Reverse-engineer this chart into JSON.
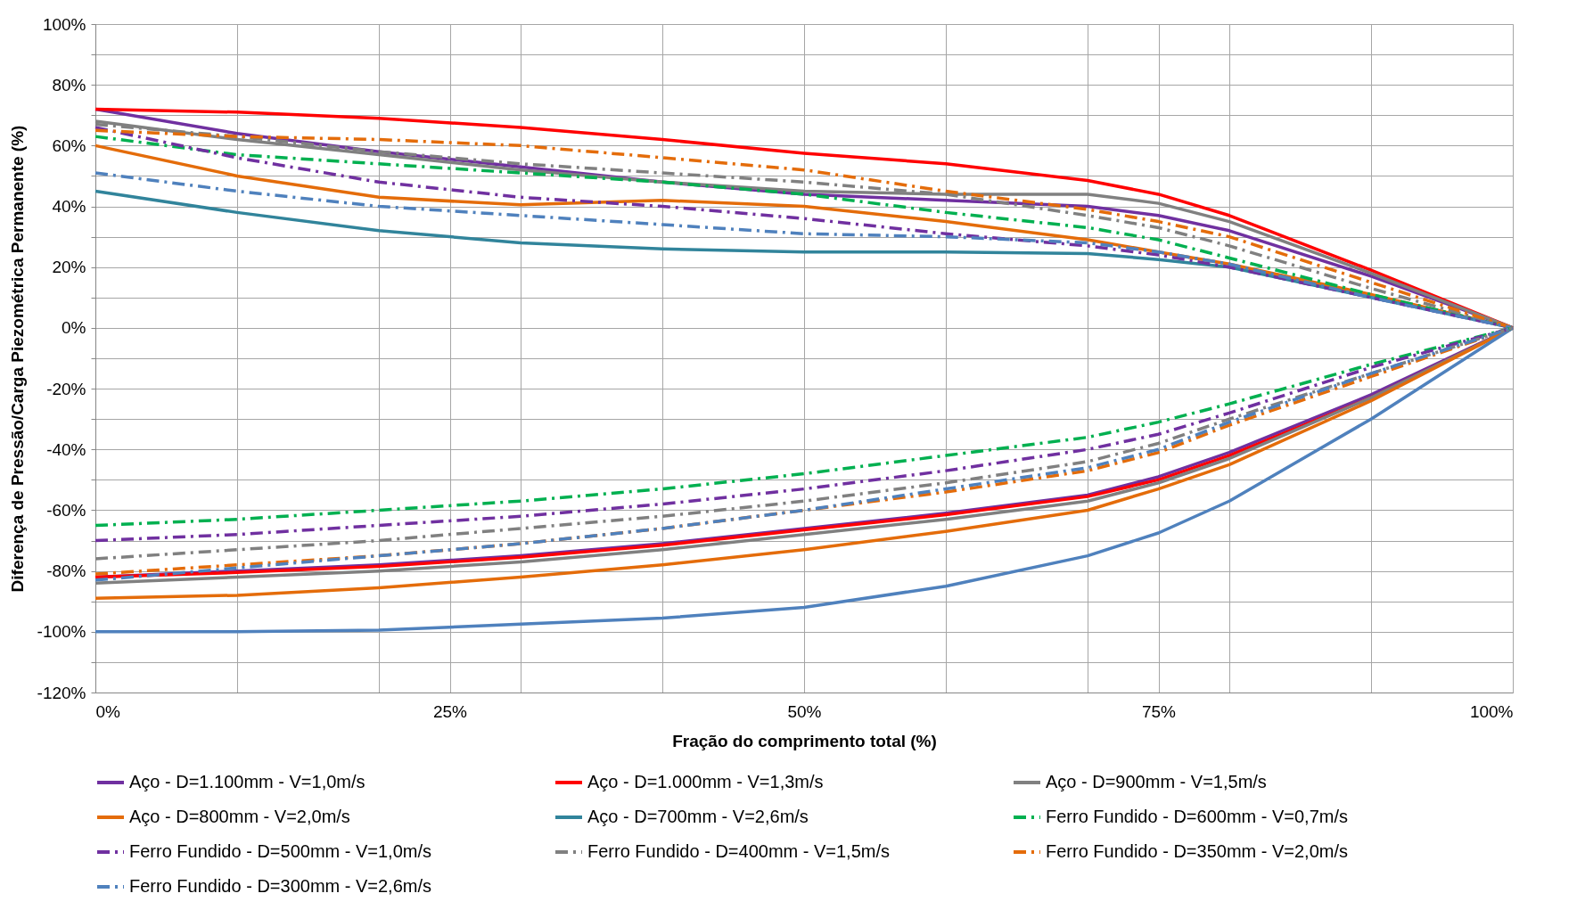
{
  "chart_data": {
    "type": "line",
    "xlabel": "Fração do comprimento total (%)",
    "ylabel": "Diferença de Pressão/Carga Piezométrica Permanente (%)",
    "x": [
      0,
      10,
      20,
      30,
      40,
      50,
      60,
      70,
      75,
      80,
      90,
      100
    ],
    "xlim": [
      0,
      100
    ],
    "ylim": [
      -120,
      100
    ],
    "xticks": [
      {
        "value": 0,
        "label": "0%"
      },
      {
        "value": 10,
        "label": null
      },
      {
        "value": 20,
        "label": null
      },
      {
        "value": 25,
        "label": "25%"
      },
      {
        "value": 30,
        "label": null
      },
      {
        "value": 40,
        "label": null
      },
      {
        "value": 50,
        "label": "50%"
      },
      {
        "value": 60,
        "label": null
      },
      {
        "value": 70,
        "label": null
      },
      {
        "value": 75,
        "label": "75%"
      },
      {
        "value": 80,
        "label": null
      },
      {
        "value": 90,
        "label": null
      },
      {
        "value": 100,
        "label": "100%"
      }
    ],
    "yticks": [
      {
        "value": -120,
        "label": "-120%"
      },
      {
        "value": -110,
        "label": null
      },
      {
        "value": -100,
        "label": "-100%"
      },
      {
        "value": -90,
        "label": null
      },
      {
        "value": -80,
        "label": "-80%"
      },
      {
        "value": -70,
        "label": null
      },
      {
        "value": -60,
        "label": "-60%"
      },
      {
        "value": -50,
        "label": null
      },
      {
        "value": -40,
        "label": "-40%"
      },
      {
        "value": -30,
        "label": null
      },
      {
        "value": -20,
        "label": "-20%"
      },
      {
        "value": -10,
        "label": null
      },
      {
        "value": 0,
        "label": "0%"
      },
      {
        "value": 10,
        "label": null
      },
      {
        "value": 20,
        "label": "20%"
      },
      {
        "value": 30,
        "label": null
      },
      {
        "value": 40,
        "label": "40%"
      },
      {
        "value": 50,
        "label": null
      },
      {
        "value": 60,
        "label": "60%"
      },
      {
        "value": 70,
        "label": null
      },
      {
        "value": 80,
        "label": "80%"
      },
      {
        "value": 90,
        "label": null
      },
      {
        "value": 100,
        "label": "100%"
      }
    ],
    "grid": true,
    "legend": "bottom",
    "series": [
      {
        "name": "Aço - D=1.100mm - V=1,0m/s",
        "color": "#7030a0",
        "line_style": "solid",
        "values": [
          72,
          64,
          58,
          53,
          48,
          44,
          42,
          40,
          37,
          32,
          17,
          0
        ]
      },
      {
        "name": "Aço - D=1.000mm - V=1,3m/s",
        "color": "#ff0000",
        "line_style": "solid",
        "values": [
          72,
          71,
          69,
          66,
          62,
          57.5,
          54,
          48.5,
          44,
          37,
          19,
          0
        ]
      },
      {
        "name": "Aço - D=900mm - V=1,5m/s",
        "color": "#808080",
        "line_style": "solid",
        "values": [
          68,
          62,
          57,
          52,
          48,
          45,
          44,
          44,
          41,
          35,
          18,
          0
        ]
      },
      {
        "name": "Aço - D=800mm - V=2,0m/s",
        "color": "#e46c0a",
        "line_style": "solid",
        "values": [
          60,
          50,
          43,
          40.5,
          42,
          40,
          35,
          29,
          25,
          21,
          11,
          0
        ]
      },
      {
        "name": "Aço - D=700mm - V=2,6m/s",
        "color": "#31849b",
        "line_style": "solid",
        "values": [
          45,
          38,
          32,
          28,
          26,
          25,
          25,
          24.5,
          22.5,
          20,
          10,
          0
        ]
      },
      {
        "name": "Ferro Fundido - D=600mm - V=0,7m/s",
        "color": "#00b050",
        "line_style": "dashed",
        "values": [
          63,
          57,
          54,
          51,
          48,
          44,
          38,
          33,
          29,
          23,
          11,
          0
        ]
      },
      {
        "name": "Ferro Fundido - D=500mm - V=1,0m/s",
        "color": "#7030a0",
        "line_style": "dashed",
        "values": [
          66,
          56,
          48,
          43,
          40,
          36,
          31,
          27,
          24,
          20,
          10,
          0
        ]
      },
      {
        "name": "Ferro Fundido - D=400mm - V=1,5m/s",
        "color": "#808080",
        "line_style": "dashed",
        "values": [
          67,
          63,
          58,
          54,
          51,
          48,
          44,
          37,
          33,
          27,
          13,
          0
        ]
      },
      {
        "name": "Ferro Fundido - D=350mm - V=2,0m/s",
        "color": "#e46c0a",
        "line_style": "dashed",
        "values": [
          65,
          63,
          62,
          60,
          56,
          52,
          45,
          39,
          35,
          30,
          15,
          0
        ]
      },
      {
        "name": "Ferro Fundido - D=300mm - V=2,6m/s",
        "color": "#4f81bd",
        "line_style": "dashed",
        "values": [
          51,
          45,
          40,
          37,
          34,
          31,
          30,
          28,
          25,
          21,
          10,
          0
        ]
      },
      {
        "color": "#7030a0",
        "line_style": "solid",
        "values": [
          -82,
          -80,
          -78,
          -75,
          -71,
          -66,
          -61,
          -55,
          -49,
          -41,
          -22,
          0
        ]
      },
      {
        "color": "#ff0000",
        "line_style": "solid",
        "values": [
          -82,
          -80.5,
          -78.5,
          -75.5,
          -71.5,
          -66.5,
          -61.5,
          -55.5,
          -50,
          -42,
          -23,
          0
        ]
      },
      {
        "color": "#808080",
        "line_style": "solid",
        "values": [
          -84,
          -82,
          -80,
          -77,
          -73,
          -68,
          -63,
          -57,
          -51,
          -43,
          -23,
          0
        ]
      },
      {
        "color": "#e46c0a",
        "line_style": "solid",
        "values": [
          -89,
          -88,
          -85.5,
          -82,
          -78,
          -73,
          -67,
          -60,
          -53,
          -45,
          -24,
          0
        ]
      },
      {
        "color": "#4f81bd",
        "line_style": "solid",
        "values": [
          -100,
          -100,
          -99.5,
          -97.5,
          -95.5,
          -92,
          -85,
          -75,
          -67.5,
          -57,
          -30,
          0
        ]
      },
      {
        "color": "#00b050",
        "line_style": "dashed",
        "values": [
          -65,
          -63,
          -60,
          -57,
          -53,
          -48,
          -42,
          -36,
          -31,
          -25,
          -12,
          0
        ]
      },
      {
        "color": "#7030a0",
        "line_style": "dashed",
        "values": [
          -70,
          -68,
          -65,
          -62,
          -58,
          -53,
          -47,
          -40,
          -35,
          -28,
          -13,
          0
        ]
      },
      {
        "color": "#808080",
        "line_style": "dashed",
        "values": [
          -76,
          -73,
          -70,
          -66,
          -62,
          -57,
          -51,
          -44,
          -38,
          -30,
          -15,
          0
        ]
      },
      {
        "color": "#e46c0a",
        "line_style": "dashed",
        "values": [
          -81,
          -78,
          -75,
          -71,
          -66,
          -60,
          -54,
          -47,
          -41,
          -32,
          -16,
          0
        ]
      },
      {
        "color": "#4f81bd",
        "line_style": "dashed",
        "values": [
          -83,
          -79,
          -75,
          -71,
          -66,
          -60,
          -53,
          -46,
          -40,
          -31,
          -15,
          0
        ]
      }
    ]
  }
}
